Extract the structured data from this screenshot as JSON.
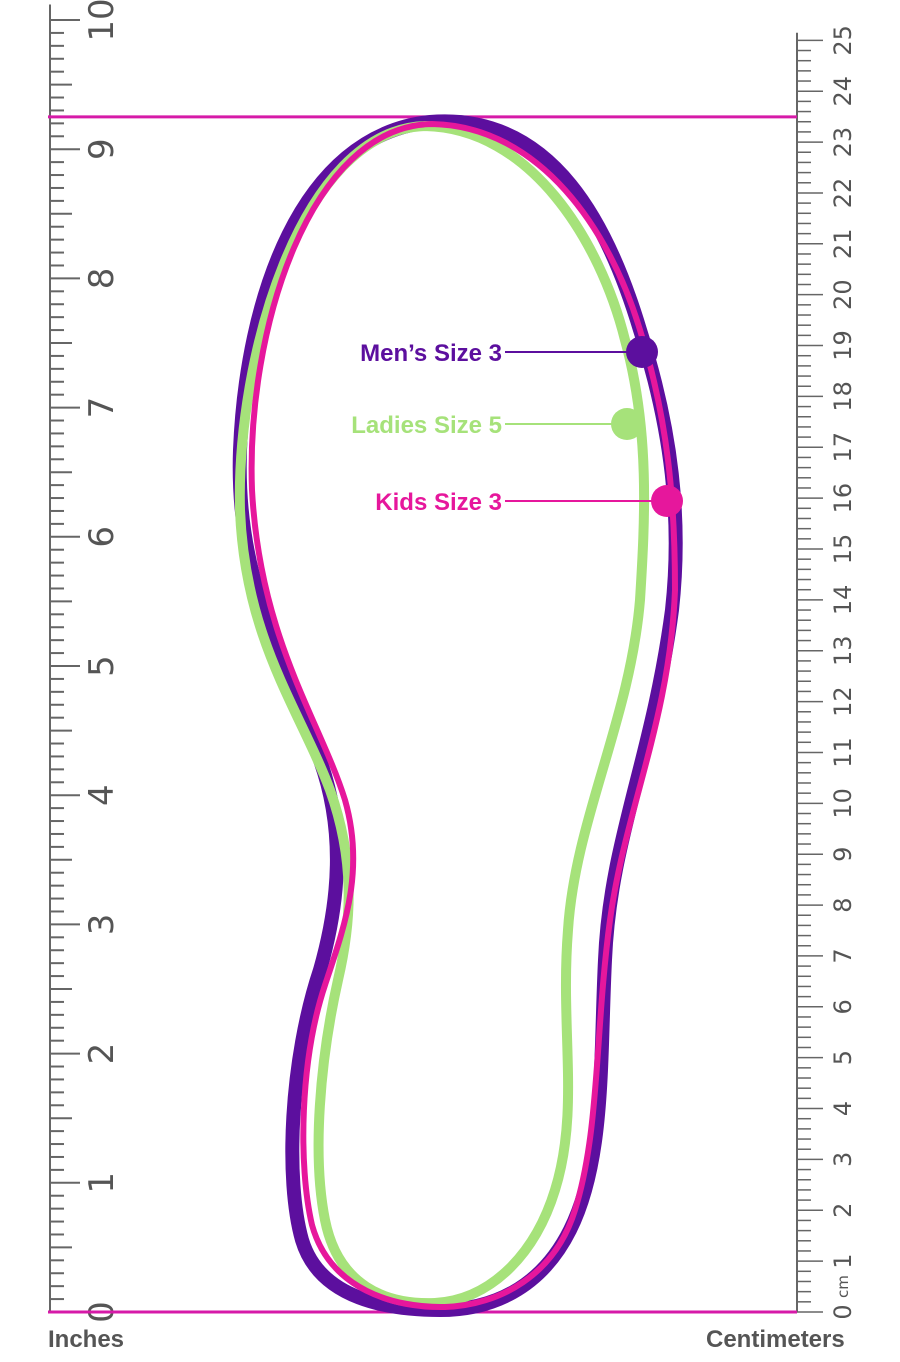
{
  "colors": {
    "mens": "#5c0f9e",
    "ladies": "#a6e27a",
    "kids": "#e6179c",
    "guide": "#d61aa8",
    "ruler": "#666666"
  },
  "rulers": {
    "inches": {
      "label": "Inches",
      "min": 0,
      "max": 10,
      "minor_divisions": 10
    },
    "centimeters": {
      "label": "Centimeters",
      "min": 0,
      "max": 25,
      "minor_divisions": 5,
      "unit_mark": "cm"
    }
  },
  "guides": {
    "top_inches": 9.25,
    "bottom_inches": 0
  },
  "outlines": [
    {
      "id": "mens",
      "label": "Men’s Size 3",
      "color": "#5c0f9e"
    },
    {
      "id": "ladies",
      "label": "Ladies Size 5",
      "color": "#a6e27a"
    },
    {
      "id": "kids",
      "label": "Kids Size 3",
      "color": "#e6179c"
    }
  ]
}
